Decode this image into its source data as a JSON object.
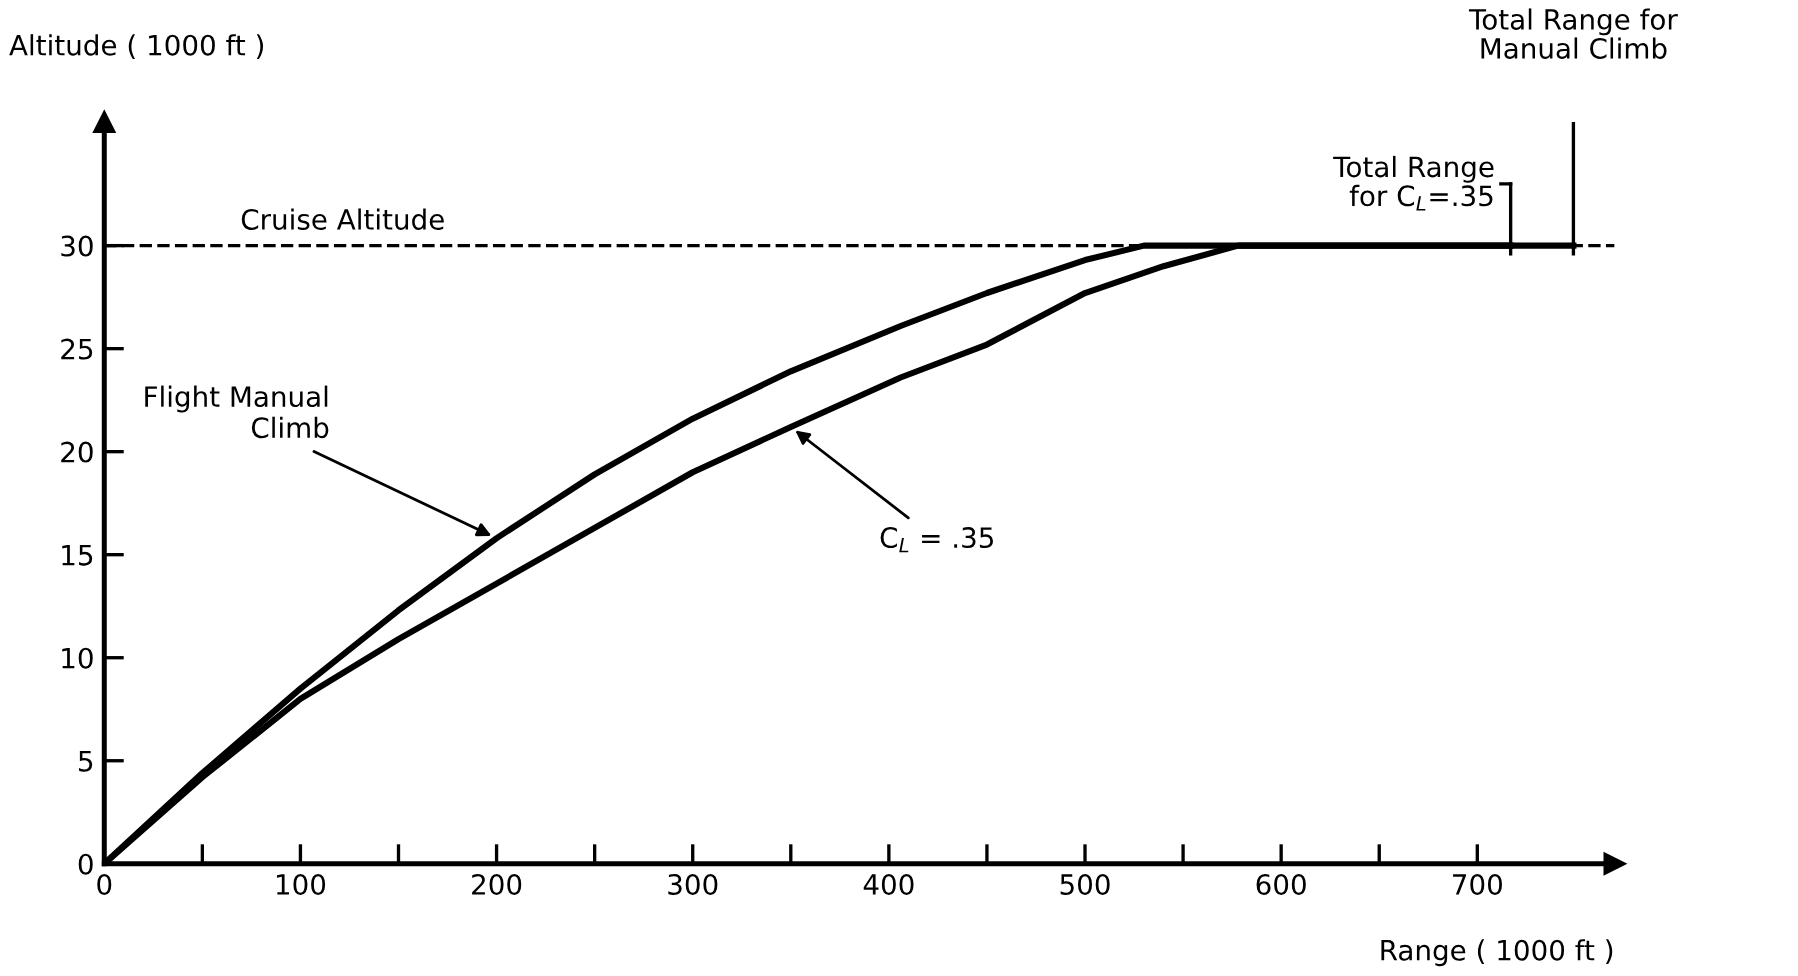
{
  "chart_data": {
    "type": "line",
    "xlabel": "Range ( 1000 ft )",
    "ylabel": "Altitude ( 1000 ft )",
    "xlim": [
      0,
      770
    ],
    "ylim": [
      0,
      36
    ],
    "xticks": [
      0,
      {
        "value": 50,
        "label": null
      },
      100,
      {
        "value": 150,
        "label": null
      },
      200,
      {
        "value": 250,
        "label": null
      },
      300,
      {
        "value": 350,
        "label": null
      },
      400,
      {
        "value": 450,
        "label": null
      },
      500,
      {
        "value": 550,
        "label": null
      },
      600,
      {
        "value": 650,
        "label": null
      },
      700
    ],
    "yticks": [
      0,
      5,
      10,
      15,
      20,
      25,
      30
    ],
    "grid": false,
    "marker": "none",
    "line_style": "solid",
    "series": [
      {
        "color": "#000000",
        "x": [
          0,
          50,
          100,
          150,
          200,
          250,
          300,
          350,
          406,
          450,
          500,
          530,
          600,
          700,
          749
        ],
        "values": [
          0,
          4.4,
          8.5,
          12.3,
          15.8,
          18.9,
          21.6,
          23.9,
          26.1,
          27.7,
          29.3,
          30,
          30,
          30,
          30
        ]
      },
      {
        "color": "#000000",
        "x": [
          0,
          50,
          100,
          150,
          200,
          250,
          300,
          350,
          406,
          450,
          500,
          540,
          578,
          650,
          717
        ],
        "values": [
          0,
          4.2,
          8.0,
          10.9,
          13.6,
          16.3,
          19.0,
          21.2,
          23.6,
          25.2,
          27.7,
          29.0,
          30,
          30,
          30
        ]
      }
    ],
    "ref_lines": [
      {
        "axis": "y",
        "value": 30,
        "label": "Cruise Altitude",
        "color": "#000000",
        "line_style": "dashed"
      }
    ],
    "annotations": [
      {
        "text": "Flight Manual\nClimb",
        "x": 200,
        "y": 15.8
      },
      {
        "text": "C$_{L}$ = .35",
        "x": 350,
        "y": 21.2
      },
      {
        "text": "Total Range\nfor C$_{L}$=.35",
        "x": 717,
        "y": 30
      },
      {
        "text": "Total Range for\nManual Climb",
        "x": 749,
        "y": 30
      }
    ]
  }
}
